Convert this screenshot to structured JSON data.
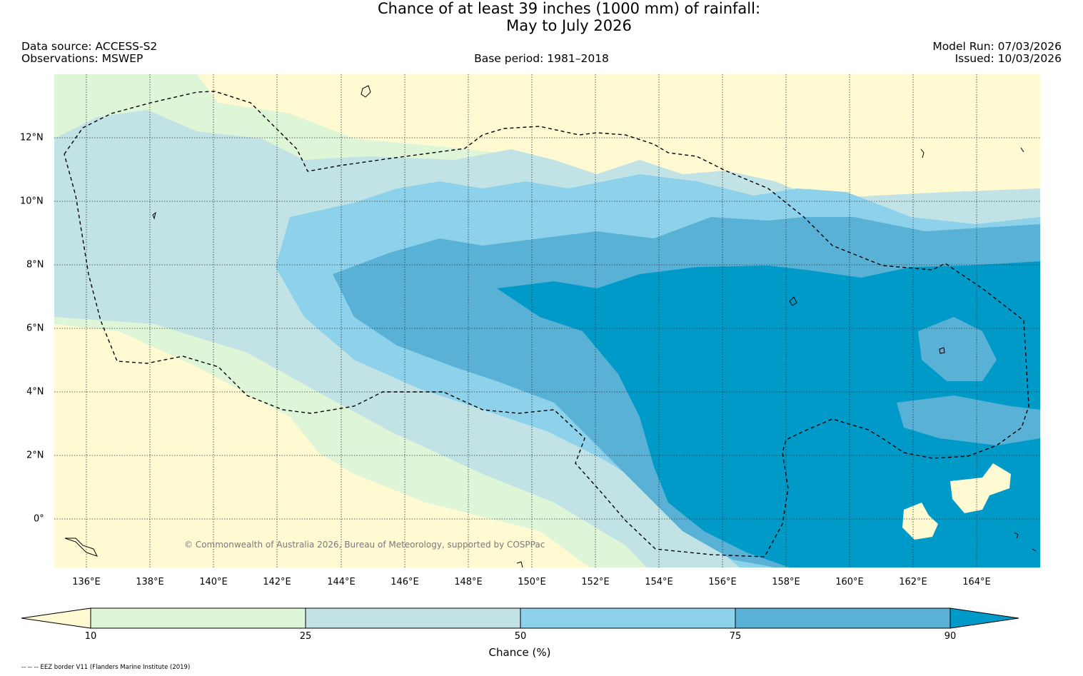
{
  "title": {
    "line1": "Chance of at least 39 inches (1000  mm) of rainfall:",
    "line2": "May to July 2026"
  },
  "header": {
    "data_source": "Data source: ACCESS-S2",
    "observations": "Observations: MSWEP",
    "base_period": "Base period: 1981–2018",
    "model_run": "Model Run: 07/03/2026",
    "issued": "Issued: 10/03/2026"
  },
  "map": {
    "longitude_labels": [
      "136°E",
      "138°E",
      "140°E",
      "142°E",
      "144°E",
      "146°E",
      "148°E",
      "150°E",
      "152°E",
      "154°E",
      "156°E",
      "158°E",
      "160°E",
      "162°E",
      "164°E"
    ],
    "latitude_labels": [
      "12°N",
      "10°N",
      "8°N",
      "6°N",
      "4°N",
      "2°N",
      "0°"
    ],
    "extent": {
      "lon_min": 135,
      "lon_max": 166,
      "lat_min": -1.5,
      "lat_max": 14
    },
    "copyright": "© Commonwealth of Australia 2026, Bureau of Meteorology, supported by COSPPac"
  },
  "colorbar": {
    "ticks": [
      "10",
      "25",
      "50",
      "75",
      "90"
    ],
    "label": "Chance (%)",
    "colors": {
      "below_10": "#fffad2",
      "10_25": "#def5d8",
      "25_50": "#c2e3e6",
      "50_75": "#8dd2ea",
      "75_90": "#59b1d6",
      "above_90": "#009ac8"
    }
  },
  "footnote": "-- -- -- EEZ border V11 (Flanders Marine Institute (2019)"
}
